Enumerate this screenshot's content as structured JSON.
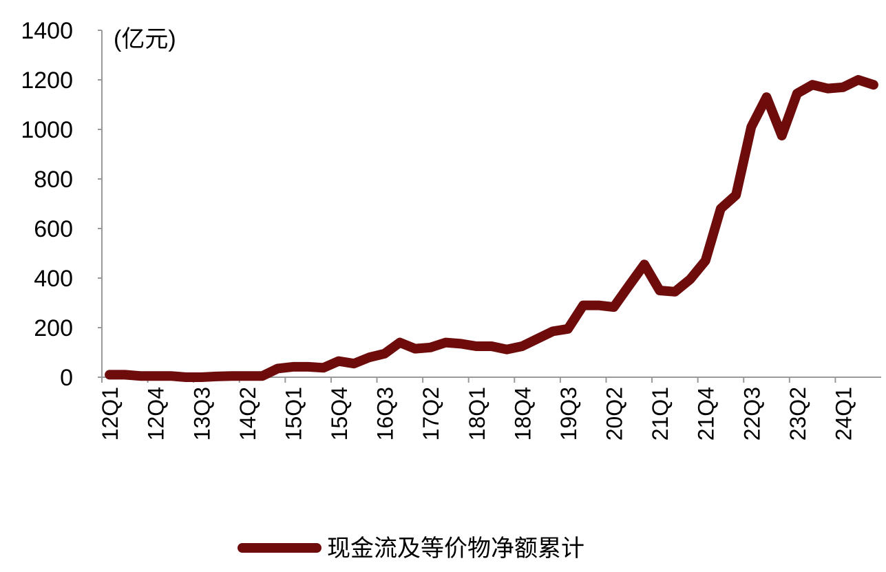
{
  "chart_data": {
    "type": "line",
    "unit_label": "(亿元)",
    "categories": [
      "12Q1",
      null,
      null,
      "12Q4",
      null,
      null,
      "13Q3",
      null,
      null,
      "14Q2",
      null,
      null,
      "15Q1",
      null,
      null,
      "15Q4",
      null,
      null,
      "16Q3",
      null,
      null,
      "17Q2",
      null,
      null,
      "18Q1",
      null,
      null,
      "18Q4",
      null,
      null,
      "19Q3",
      null,
      null,
      "20Q2",
      null,
      null,
      "21Q1",
      null,
      null,
      "21Q4",
      null,
      null,
      "22Q3",
      null,
      null,
      "23Q2",
      null,
      null,
      "24Q1",
      null,
      null
    ],
    "series": [
      {
        "name": "现金流及等价物净额累计",
        "color": "#6e0b0b",
        "values": [
          10,
          10,
          5,
          5,
          5,
          0,
          0,
          3,
          5,
          5,
          5,
          35,
          42,
          42,
          38,
          65,
          55,
          80,
          95,
          140,
          115,
          120,
          140,
          135,
          125,
          125,
          112,
          125,
          155,
          185,
          195,
          290,
          290,
          283,
          370,
          455,
          350,
          345,
          395,
          470,
          680,
          735,
          1010,
          1130,
          975,
          1145,
          1180,
          1165,
          1170,
          1200,
          1180
        ]
      }
    ],
    "ylim": [
      0,
      1400
    ],
    "yticks": [
      0,
      200,
      400,
      600,
      800,
      1000,
      1200,
      1400
    ],
    "grid": false,
    "legend": "bottom"
  }
}
